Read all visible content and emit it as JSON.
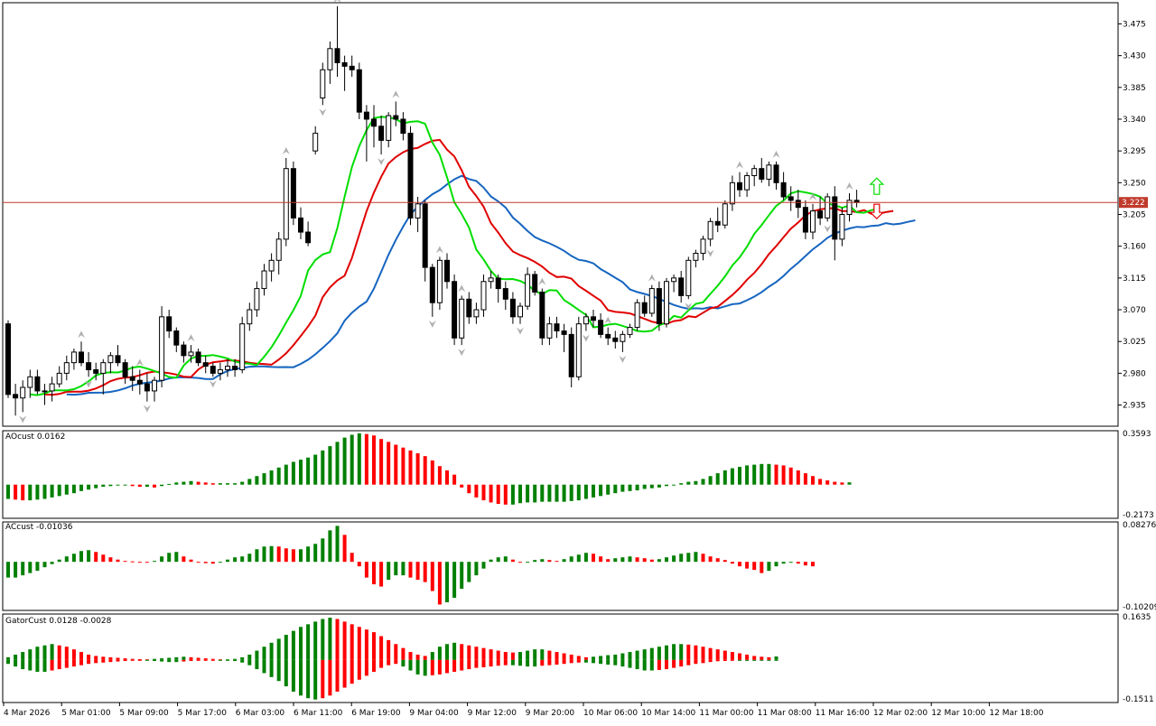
{
  "main_panel": {
    "current_price_label": "3.222",
    "price_ticks": [
      "3.475",
      "3.430",
      "3.385",
      "3.340",
      "3.295",
      "3.250",
      "3.205",
      "3.160",
      "3.115",
      "3.070",
      "3.025",
      "2.980",
      "2.935"
    ]
  },
  "time_axis": {
    "labels": [
      "4 Mar 2026",
      "5 Mar 01:00",
      "5 Mar 09:00",
      "5 Mar 17:00",
      "6 Mar 03:00",
      "6 Mar 11:00",
      "6 Mar 19:00",
      "9 Mar 04:00",
      "9 Mar 12:00",
      "9 Mar 20:00",
      "10 Mar 06:00",
      "10 Mar 14:00",
      "11 Mar 00:00",
      "11 Mar 08:00",
      "11 Mar 16:00",
      "12 Mar 02:00",
      "12 Mar 10:00",
      "12 Mar 18:00"
    ]
  },
  "ao_panel": {
    "title": "AOcust 0.0162",
    "top_label": "0.3593",
    "bottom_label": "-0.2173"
  },
  "ac_panel": {
    "title": "ACcust -0.01036",
    "top_label": "0.08276",
    "bottom_label": "-0.10209"
  },
  "gator_panel": {
    "title": "GatorCust 0.0128 -0.0028",
    "top_label": "0.1635",
    "bottom_label": "-0.1511"
  },
  "colors": {
    "bull": "#ffffff",
    "bear": "#000000",
    "up_bar": "#008000",
    "down_bar": "#ff0000",
    "jaw": "#1565c0",
    "teeth": "#e00000",
    "lips": "#00dd00",
    "price_line": "#c0392b"
  },
  "chart_data": [
    {
      "type": "candlestick",
      "title": "",
      "ylim": [
        2.905,
        3.505
      ],
      "ohlc": [
        [
          3.05,
          3.055,
          2.945,
          2.95
        ],
        [
          2.95,
          2.965,
          2.92,
          2.945
        ],
        [
          2.945,
          2.97,
          2.925,
          2.96
        ],
        [
          2.96,
          2.985,
          2.945,
          2.975
        ],
        [
          2.975,
          2.985,
          2.95,
          2.955
        ],
        [
          2.955,
          2.965,
          2.935,
          2.955
        ],
        [
          2.955,
          2.975,
          2.94,
          2.965
        ],
        [
          2.965,
          2.99,
          2.96,
          2.98
        ],
        [
          2.98,
          3.005,
          2.97,
          2.995
        ],
        [
          2.995,
          3.015,
          2.985,
          3.01
        ],
        [
          3.01,
          3.025,
          2.99,
          2.995
        ],
        [
          2.995,
          3.01,
          2.975,
          2.985
        ],
        [
          2.985,
          2.995,
          2.97,
          2.98
        ],
        [
          2.98,
          3.0,
          2.95,
          2.995
        ],
        [
          2.995,
          3.01,
          2.98,
          3.005
        ],
        [
          3.005,
          3.02,
          2.99,
          2.995
        ],
        [
          2.995,
          3.0,
          2.965,
          2.975
        ],
        [
          2.975,
          2.99,
          2.955,
          2.97
        ],
        [
          2.97,
          2.985,
          2.95,
          2.965
        ],
        [
          2.965,
          2.98,
          2.94,
          2.955
        ],
        [
          2.955,
          2.975,
          2.94,
          2.97
        ],
        [
          2.97,
          3.075,
          2.96,
          3.06
        ],
        [
          3.06,
          3.07,
          3.03,
          3.04
        ],
        [
          3.04,
          3.045,
          3.01,
          3.02
        ],
        [
          3.02,
          3.025,
          2.995,
          3.005
        ],
        [
          3.005,
          3.02,
          2.995,
          3.01
        ],
        [
          3.01,
          3.015,
          2.99,
          2.995
        ],
        [
          2.995,
          3.005,
          2.98,
          2.99
        ],
        [
          2.99,
          2.995,
          2.975,
          2.98
        ],
        [
          2.98,
          2.995,
          2.97,
          2.985
        ],
        [
          2.985,
          3.0,
          2.975,
          2.99
        ],
        [
          2.99,
          3.0,
          2.975,
          2.985
        ],
        [
          2.985,
          3.06,
          2.98,
          3.05
        ],
        [
          3.05,
          3.08,
          3.04,
          3.07
        ],
        [
          3.07,
          3.11,
          3.06,
          3.1
        ],
        [
          3.1,
          3.135,
          3.09,
          3.125
        ],
        [
          3.125,
          3.15,
          3.11,
          3.14
        ],
        [
          3.14,
          3.18,
          3.12,
          3.17
        ],
        [
          3.17,
          3.285,
          3.16,
          3.27
        ],
        [
          3.27,
          3.28,
          3.19,
          3.2
        ],
        [
          3.2,
          3.215,
          3.17,
          3.18
        ],
        [
          3.18,
          3.195,
          3.16,
          3.165
        ],
        [
          3.295,
          3.33,
          3.29,
          3.32
        ],
        [
          3.37,
          3.42,
          3.36,
          3.41
        ],
        [
          3.41,
          3.45,
          3.39,
          3.44
        ],
        [
          3.44,
          3.5,
          3.4,
          3.42
        ],
        [
          3.42,
          3.43,
          3.38,
          3.415
        ],
        [
          3.415,
          3.43,
          3.4,
          3.41
        ],
        [
          3.41,
          3.42,
          3.34,
          3.35
        ],
        [
          3.35,
          3.36,
          3.28,
          3.34
        ],
        [
          3.34,
          3.36,
          3.3,
          3.33
        ],
        [
          3.33,
          3.345,
          3.29,
          3.31
        ],
        [
          3.31,
          3.35,
          3.3,
          3.345
        ],
        [
          3.345,
          3.365,
          3.33,
          3.34
        ],
        [
          3.34,
          3.35,
          3.31,
          3.32
        ],
        [
          3.32,
          3.33,
          3.19,
          3.2
        ],
        [
          3.2,
          3.23,
          3.18,
          3.22
        ],
        [
          3.22,
          3.225,
          3.11,
          3.13
        ],
        [
          3.13,
          3.135,
          3.06,
          3.08
        ],
        [
          3.08,
          3.145,
          3.07,
          3.14
        ],
        [
          3.14,
          3.15,
          3.1,
          3.11
        ],
        [
          3.11,
          3.12,
          3.02,
          3.03
        ],
        [
          3.03,
          3.09,
          3.02,
          3.085
        ],
        [
          3.085,
          3.095,
          3.05,
          3.06
        ],
        [
          3.06,
          3.08,
          3.05,
          3.07
        ],
        [
          3.07,
          3.12,
          3.06,
          3.11
        ],
        [
          3.11,
          3.125,
          3.1,
          3.115
        ],
        [
          3.115,
          3.12,
          3.08,
          3.1
        ],
        [
          3.1,
          3.11,
          3.07,
          3.085
        ],
        [
          3.085,
          3.095,
          3.05,
          3.06
        ],
        [
          3.06,
          3.08,
          3.05,
          3.075
        ],
        [
          3.075,
          3.13,
          3.07,
          3.12
        ],
        [
          3.12,
          3.125,
          3.09,
          3.095
        ],
        [
          3.095,
          3.1,
          3.02,
          3.03
        ],
        [
          3.03,
          3.06,
          3.02,
          3.05
        ],
        [
          3.05,
          3.06,
          3.03,
          3.04
        ],
        [
          3.04,
          3.05,
          3.01,
          3.035
        ],
        [
          3.035,
          3.045,
          2.96,
          2.975
        ],
        [
          2.975,
          3.06,
          2.97,
          3.05
        ],
        [
          3.05,
          3.065,
          3.04,
          3.06
        ],
        [
          3.06,
          3.07,
          3.045,
          3.055
        ],
        [
          3.055,
          3.065,
          3.03,
          3.035
        ],
        [
          3.035,
          3.045,
          3.02,
          3.03
        ],
        [
          3.03,
          3.04,
          3.015,
          3.025
        ],
        [
          3.025,
          3.04,
          3.01,
          3.035
        ],
        [
          3.035,
          3.05,
          3.03,
          3.045
        ],
        [
          3.045,
          3.085,
          3.04,
          3.08
        ],
        [
          3.08,
          3.09,
          3.06,
          3.065
        ],
        [
          3.065,
          3.105,
          3.06,
          3.1
        ],
        [
          3.1,
          3.11,
          3.04,
          3.05
        ],
        [
          3.05,
          3.115,
          3.045,
          3.11
        ],
        [
          3.11,
          3.12,
          3.095,
          3.115
        ],
        [
          3.115,
          3.125,
          3.08,
          3.09
        ],
        [
          3.09,
          3.145,
          3.085,
          3.14
        ],
        [
          3.14,
          3.155,
          3.13,
          3.15
        ],
        [
          3.15,
          3.175,
          3.14,
          3.17
        ],
        [
          3.17,
          3.2,
          3.16,
          3.195
        ],
        [
          3.195,
          3.215,
          3.18,
          3.19
        ],
        [
          3.19,
          3.225,
          3.185,
          3.22
        ],
        [
          3.22,
          3.26,
          3.21,
          3.25
        ],
        [
          3.25,
          3.265,
          3.23,
          3.24
        ],
        [
          3.24,
          3.265,
          3.23,
          3.26
        ],
        [
          3.26,
          3.275,
          3.245,
          3.27
        ],
        [
          3.27,
          3.285,
          3.25,
          3.255
        ],
        [
          3.255,
          3.28,
          3.245,
          3.275
        ],
        [
          3.275,
          3.28,
          3.24,
          3.25
        ],
        [
          3.25,
          3.265,
          3.225,
          3.23
        ],
        [
          3.23,
          3.245,
          3.21,
          3.225
        ],
        [
          3.225,
          3.24,
          3.2,
          3.215
        ],
        [
          3.215,
          3.225,
          3.17,
          3.18
        ],
        [
          3.18,
          3.22,
          3.17,
          3.21
        ],
        [
          3.21,
          3.23,
          3.19,
          3.2
        ],
        [
          3.2,
          3.235,
          3.195,
          3.23
        ],
        [
          3.23,
          3.245,
          3.14,
          3.17
        ],
        [
          3.17,
          3.215,
          3.16,
          3.205
        ],
        [
          3.205,
          3.235,
          3.195,
          3.225
        ],
        [
          3.225,
          3.24,
          3.215,
          3.222
        ]
      ],
      "fractals_up_idx": [
        10,
        18,
        25,
        38,
        45,
        53,
        59,
        62,
        73,
        82,
        88,
        100,
        105,
        110,
        115
      ],
      "fractals_down_idx": [
        2,
        11,
        19,
        28,
        43,
        51,
        58,
        62,
        70,
        79,
        84,
        93,
        96,
        112
      ],
      "arrow_up_label": "buy-signal",
      "arrow_down_label": "sell-signal"
    },
    {
      "type": "bar",
      "title": "AOcust 0.0162",
      "ylim": [
        -0.2173,
        0.3593
      ],
      "values": [
        -0.1,
        -0.105,
        -0.11,
        -0.11,
        -0.105,
        -0.1,
        -0.09,
        -0.08,
        -0.07,
        -0.06,
        -0.045,
        -0.035,
        -0.025,
        -0.015,
        -0.01,
        -0.005,
        -0.005,
        -0.01,
        -0.015,
        -0.015,
        -0.02,
        -0.01,
        0.005,
        0.015,
        0.02,
        0.025,
        0.02,
        0.015,
        0.01,
        0.01,
        0.01,
        0.01,
        0.02,
        0.04,
        0.06,
        0.08,
        0.1,
        0.12,
        0.14,
        0.16,
        0.175,
        0.19,
        0.21,
        0.24,
        0.27,
        0.3,
        0.33,
        0.35,
        0.36,
        0.355,
        0.345,
        0.32,
        0.3,
        0.28,
        0.26,
        0.24,
        0.22,
        0.2,
        0.17,
        0.13,
        0.1,
        0.07,
        -0.02,
        -0.06,
        -0.09,
        -0.11,
        -0.125,
        -0.135,
        -0.14,
        -0.14,
        -0.13,
        -0.125,
        -0.125,
        -0.12,
        -0.12,
        -0.12,
        -0.12,
        -0.115,
        -0.11,
        -0.1,
        -0.09,
        -0.08,
        -0.07,
        -0.06,
        -0.05,
        -0.045,
        -0.04,
        -0.03,
        -0.025,
        -0.02,
        -0.01,
        0.0,
        0.01,
        0.02,
        0.025,
        0.04,
        0.06,
        0.08,
        0.1,
        0.115,
        0.125,
        0.135,
        0.14,
        0.145,
        0.145,
        0.14,
        0.135,
        0.12,
        0.1,
        0.08,
        0.06,
        0.04,
        0.03,
        0.02,
        0.015,
        0.016
      ]
    },
    {
      "type": "bar",
      "title": "ACcust -0.01036",
      "ylim": [
        -0.10209,
        0.08276
      ],
      "values": [
        -0.035,
        -0.035,
        -0.03,
        -0.025,
        -0.02,
        -0.012,
        -0.005,
        0.005,
        0.012,
        0.018,
        0.024,
        0.026,
        0.022,
        0.016,
        0.01,
        0.005,
        0.002,
        0.001,
        0.0,
        -0.002,
        0.002,
        0.012,
        0.02,
        0.022,
        0.012,
        0.005,
        0.0,
        -0.003,
        -0.004,
        -0.002,
        0.005,
        0.01,
        0.012,
        0.018,
        0.028,
        0.034,
        0.035,
        0.034,
        0.03,
        0.028,
        0.028,
        0.034,
        0.04,
        0.052,
        0.07,
        0.08,
        0.06,
        0.02,
        -0.01,
        -0.035,
        -0.05,
        -0.055,
        -0.04,
        -0.03,
        -0.03,
        -0.035,
        -0.04,
        -0.045,
        -0.065,
        -0.095,
        -0.09,
        -0.08,
        -0.06,
        -0.045,
        -0.03,
        -0.015,
        0.005,
        0.01,
        0.012,
        0.005,
        -0.002,
        0.0,
        0.004,
        0.006,
        0.004,
        0.002,
        0.006,
        0.012,
        0.016,
        0.02,
        0.018,
        0.012,
        0.006,
        0.008,
        0.01,
        0.012,
        0.01,
        0.008,
        0.005,
        0.006,
        0.01,
        0.014,
        0.018,
        0.02,
        0.022,
        0.018,
        0.012,
        0.008,
        0.004,
        -0.004,
        -0.01,
        -0.015,
        -0.018,
        -0.025,
        -0.02,
        -0.01,
        -0.004,
        -0.002,
        -0.004,
        -0.008,
        -0.01
      ]
    },
    {
      "type": "bar",
      "title": "GatorCust 0.0128 -0.0028",
      "ylim": [
        -0.1511,
        0.1635
      ],
      "upper": [
        0.01,
        0.02,
        0.03,
        0.04,
        0.05,
        0.055,
        0.06,
        0.055,
        0.05,
        0.04,
        0.03,
        0.02,
        0.015,
        0.012,
        0.01,
        0.008,
        0.006,
        0.004,
        0.003,
        0.002,
        0.004,
        0.006,
        0.008,
        0.01,
        0.012,
        0.01,
        0.008,
        0.006,
        0.004,
        0.002,
        0.002,
        0.004,
        0.01,
        0.02,
        0.035,
        0.05,
        0.065,
        0.08,
        0.095,
        0.11,
        0.125,
        0.135,
        0.145,
        0.155,
        0.16,
        0.155,
        0.145,
        0.135,
        0.125,
        0.115,
        0.105,
        0.09,
        0.075,
        0.06,
        0.045,
        0.03,
        0.02,
        0.015,
        0.03,
        0.05,
        0.06,
        0.065,
        0.06,
        0.055,
        0.05,
        0.045,
        0.04,
        0.035,
        0.03,
        0.028,
        0.03,
        0.035,
        0.04,
        0.04,
        0.035,
        0.03,
        0.025,
        0.02,
        0.015,
        0.01,
        0.012,
        0.015,
        0.018,
        0.02,
        0.025,
        0.03,
        0.035,
        0.04,
        0.045,
        0.05,
        0.055,
        0.06,
        0.06,
        0.058,
        0.055,
        0.05,
        0.045,
        0.04,
        0.035,
        0.03,
        0.025,
        0.02,
        0.015,
        0.012,
        0.01,
        0.013
      ],
      "lower": [
        -0.015,
        -0.025,
        -0.035,
        -0.04,
        -0.045,
        -0.045,
        -0.04,
        -0.035,
        -0.03,
        -0.025,
        -0.02,
        -0.015,
        -0.012,
        -0.01,
        -0.008,
        -0.006,
        -0.004,
        -0.003,
        -0.002,
        -0.002,
        -0.004,
        -0.006,
        -0.008,
        -0.008,
        -0.006,
        -0.004,
        -0.003,
        -0.002,
        -0.001,
        -0.001,
        -0.002,
        -0.004,
        -0.01,
        -0.02,
        -0.035,
        -0.05,
        -0.065,
        -0.08,
        -0.1,
        -0.12,
        -0.135,
        -0.145,
        -0.15,
        -0.145,
        -0.135,
        -0.12,
        -0.105,
        -0.09,
        -0.075,
        -0.06,
        -0.045,
        -0.03,
        -0.02,
        -0.015,
        -0.025,
        -0.04,
        -0.055,
        -0.06,
        -0.058,
        -0.055,
        -0.05,
        -0.045,
        -0.04,
        -0.035,
        -0.03,
        -0.028,
        -0.025,
        -0.022,
        -0.02,
        -0.02,
        -0.022,
        -0.025,
        -0.025,
        -0.022,
        -0.02,
        -0.018,
        -0.015,
        -0.012,
        -0.01,
        -0.01,
        -0.012,
        -0.015,
        -0.018,
        -0.02,
        -0.025,
        -0.03,
        -0.035,
        -0.04,
        -0.04,
        -0.038,
        -0.035,
        -0.03,
        -0.025,
        -0.02,
        -0.015,
        -0.012,
        -0.008,
        -0.005,
        -0.004,
        -0.003,
        -0.003,
        -0.003,
        -0.003,
        -0.003,
        -0.003,
        -0.003
      ]
    }
  ]
}
